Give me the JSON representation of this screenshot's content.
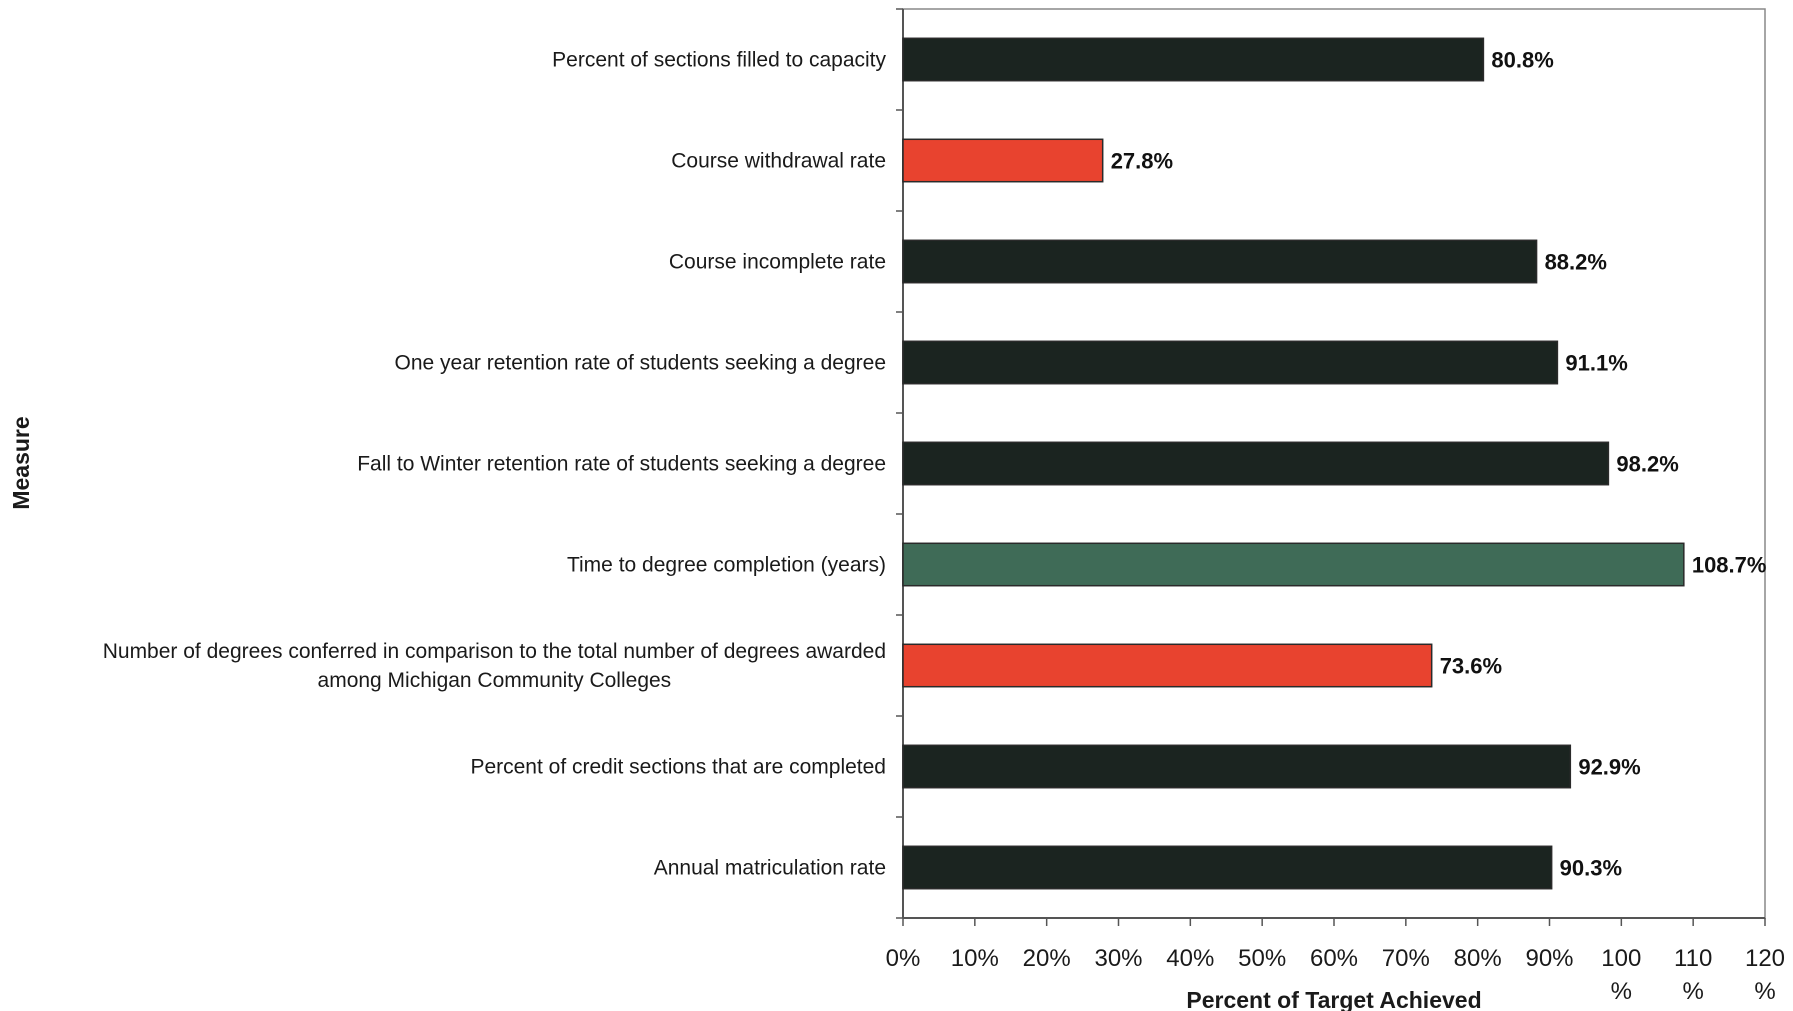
{
  "chart_data": {
    "type": "bar",
    "orientation": "horizontal",
    "xlabel": "Percent of Target Achieved",
    "ylabel": "Measure",
    "xlim": [
      0,
      120
    ],
    "x_ticks": [
      0,
      10,
      20,
      30,
      40,
      50,
      60,
      70,
      80,
      90,
      100,
      110,
      120
    ],
    "x_tick_labels": [
      "0%",
      "10%",
      "20%",
      "30%",
      "40%",
      "50%",
      "60%",
      "70%",
      "80%",
      "90%",
      "100 %",
      "110 %",
      "120 %"
    ],
    "grid": false,
    "categories": [
      "Percent of sections filled to capacity",
      "Course withdrawal rate",
      "Course incomplete rate",
      "One year retention rate of students seeking a degree",
      "Fall to Winter retention rate of students seeking a degree",
      "Time to degree completion (years)",
      "Number of degrees conferred in comparison to the total number of degrees awarded among Michigan Community Colleges",
      "Percent of credit sections that are completed",
      "Annual matriculation rate"
    ],
    "category_lines": [
      [
        "Percent of sections filled to capacity"
      ],
      [
        "Course withdrawal rate"
      ],
      [
        "Course incomplete rate"
      ],
      [
        "One year retention rate of students seeking a degree"
      ],
      [
        "Fall to Winter retention rate of students seeking a degree"
      ],
      [
        "Time to degree completion (years)"
      ],
      [
        "Number of degrees conferred in comparison to the total number of degrees awarded",
        "among Michigan Community Colleges"
      ],
      [
        "Percent of credit sections that are completed"
      ],
      [
        "Annual matriculation rate"
      ]
    ],
    "values": [
      80.8,
      27.8,
      88.2,
      91.1,
      98.2,
      108.7,
      73.6,
      92.9,
      90.3
    ],
    "value_labels": [
      "80.8%",
      "27.8%",
      "88.2%",
      "91.1%",
      "98.2%",
      "108.7%",
      "73.6%",
      "92.9%",
      "90.3%"
    ],
    "bar_colors": [
      "#1b2420",
      "#e8432f",
      "#1b2420",
      "#1b2420",
      "#1b2420",
      "#3f6b57",
      "#e8432f",
      "#1b2420",
      "#1b2420"
    ]
  }
}
